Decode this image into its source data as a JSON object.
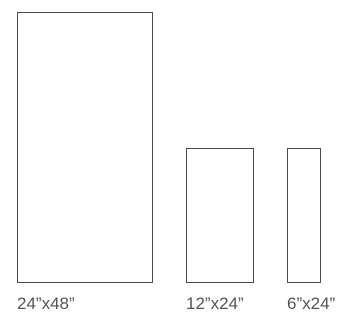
{
  "tiles": [
    {
      "label": "24”x48”"
    },
    {
      "label": "12”x24”"
    },
    {
      "label": "6”x24”"
    }
  ],
  "colors": {
    "outline": "#4a4a4a",
    "label": "#555555",
    "background": "#ffffff"
  }
}
